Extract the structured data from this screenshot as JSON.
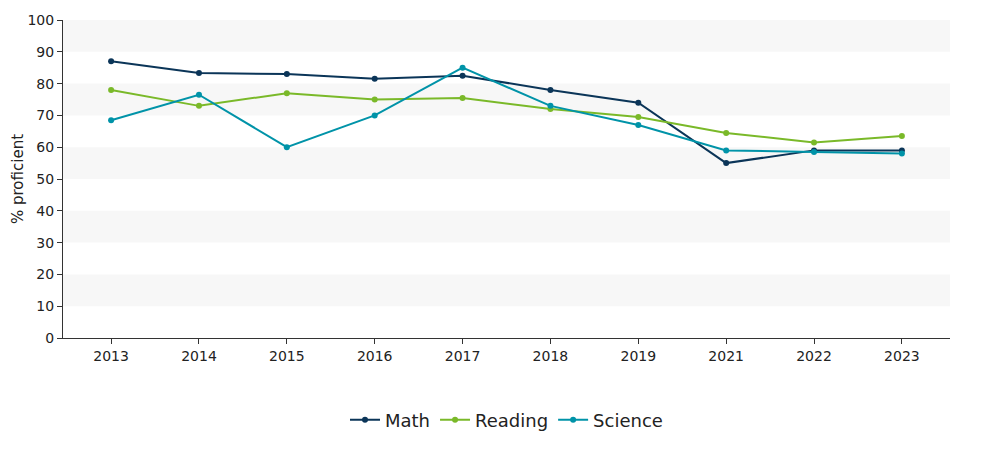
{
  "chart_data": {
    "type": "line",
    "y_label": "% proficient",
    "categories": [
      "2013",
      "2014",
      "2015",
      "2016",
      "2017",
      "2018",
      "2019",
      "2021",
      "2022",
      "2023"
    ],
    "series": [
      {
        "name": "Math",
        "color": "#0b3558",
        "values": [
          87,
          83.3,
          83,
          81.5,
          82.5,
          78,
          74,
          55,
          59,
          59
        ]
      },
      {
        "name": "Reading",
        "color": "#7ab929",
        "values": [
          78,
          73,
          77,
          75,
          75.5,
          72,
          69.5,
          64.5,
          61.5,
          63.5
        ]
      },
      {
        "name": "Science",
        "color": "#0093a8",
        "values": [
          68.5,
          76.5,
          60,
          70,
          85,
          73,
          67,
          59,
          58.5,
          58
        ]
      }
    ],
    "ylim": [
      0,
      100
    ],
    "yticks": [
      0,
      10,
      20,
      30,
      40,
      50,
      60,
      70,
      80,
      90,
      100
    ],
    "grid": true,
    "legend": "bottom",
    "marker": "circle"
  }
}
